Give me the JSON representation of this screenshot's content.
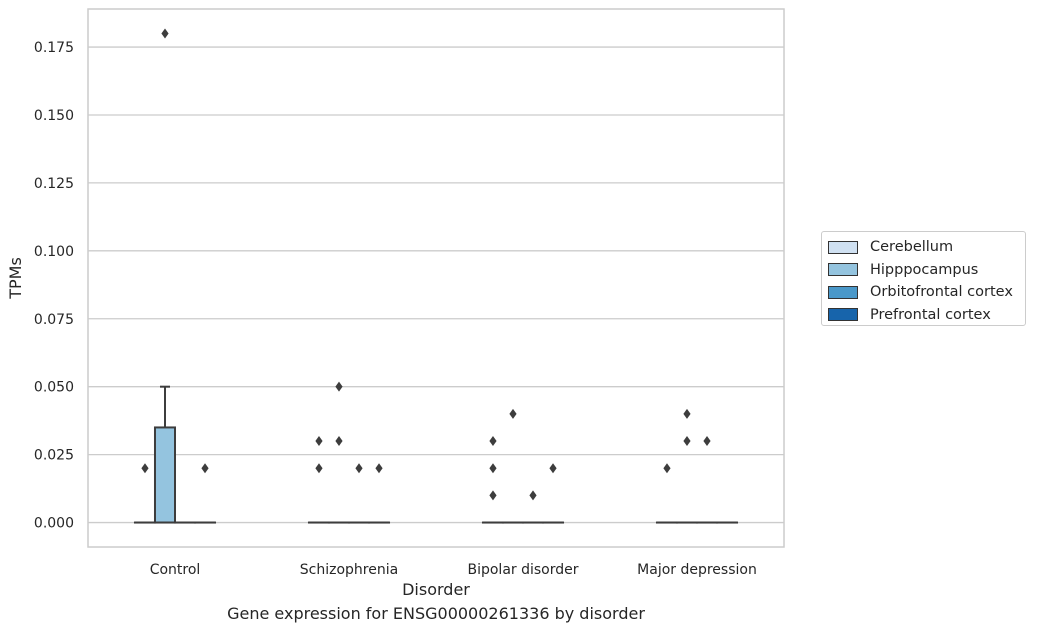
{
  "chart_data": {
    "type": "box",
    "title": "Gene expression for ENSG00000261336 by disorder",
    "xlabel": "Disorder",
    "ylabel": "TPMs",
    "categories": [
      "Control",
      "Schizophrenia",
      "Bipolar disorder",
      "Major depression"
    ],
    "y_ticks": [
      "0.000",
      "0.025",
      "0.050",
      "0.075",
      "0.100",
      "0.125",
      "0.150",
      "0.175"
    ],
    "ylim": [
      -0.009,
      0.189
    ],
    "grid": "horizontal",
    "legend_position": "right",
    "series": [
      {
        "name": "Cerebellum",
        "color": "#d0e1f2",
        "boxes": [
          {
            "q1": 0,
            "median": 0,
            "q3": 0,
            "whisker_low": 0,
            "whisker_high": 0,
            "outliers": [
              0.02
            ]
          },
          {
            "q1": 0,
            "median": 0,
            "q3": 0,
            "whisker_low": 0,
            "whisker_high": 0,
            "outliers": [
              0.02,
              0.03
            ]
          },
          {
            "q1": 0,
            "median": 0,
            "q3": 0,
            "whisker_low": 0,
            "whisker_high": 0,
            "outliers": [
              0.01,
              0.02,
              0.03
            ]
          },
          {
            "q1": 0,
            "median": 0,
            "q3": 0,
            "whisker_low": 0,
            "whisker_high": 0,
            "outliers": [
              0.02
            ]
          }
        ]
      },
      {
        "name": "Hipppocampus",
        "color": "#94c4df",
        "boxes": [
          {
            "q1": 0,
            "median": 0,
            "q3": 0.035,
            "whisker_low": 0,
            "whisker_high": 0.05,
            "outliers": [
              0.18
            ]
          },
          {
            "q1": 0,
            "median": 0,
            "q3": 0,
            "whisker_low": 0,
            "whisker_high": 0,
            "outliers": [
              0.03,
              0.05
            ]
          },
          {
            "q1": 0,
            "median": 0,
            "q3": 0,
            "whisker_low": 0,
            "whisker_high": 0,
            "outliers": [
              0.04
            ]
          },
          {
            "q1": 0,
            "median": 0,
            "q3": 0,
            "whisker_low": 0,
            "whisker_high": 0,
            "outliers": [
              0.03,
              0.04
            ]
          }
        ]
      },
      {
        "name": "Orbitofrontal cortex",
        "color": "#4a98c9",
        "boxes": [
          {
            "q1": 0,
            "median": 0,
            "q3": 0,
            "whisker_low": 0,
            "whisker_high": 0,
            "outliers": []
          },
          {
            "q1": 0,
            "median": 0,
            "q3": 0,
            "whisker_low": 0,
            "whisker_high": 0,
            "outliers": [
              0.02
            ]
          },
          {
            "q1": 0,
            "median": 0,
            "q3": 0,
            "whisker_low": 0,
            "whisker_high": 0,
            "outliers": [
              0.01
            ]
          },
          {
            "q1": 0,
            "median": 0,
            "q3": 0,
            "whisker_low": 0,
            "whisker_high": 0,
            "outliers": [
              0.03
            ]
          }
        ]
      },
      {
        "name": "Prefrontal cortex",
        "color": "#1764ab",
        "boxes": [
          {
            "q1": 0,
            "median": 0,
            "q3": 0,
            "whisker_low": 0,
            "whisker_high": 0,
            "outliers": [
              0.02
            ]
          },
          {
            "q1": 0,
            "median": 0,
            "q3": 0,
            "whisker_low": 0,
            "whisker_high": 0,
            "outliers": [
              0.02
            ]
          },
          {
            "q1": 0,
            "median": 0,
            "q3": 0,
            "whisker_low": 0,
            "whisker_high": 0,
            "outliers": [
              0.02
            ]
          },
          {
            "q1": 0,
            "median": 0,
            "q3": 0,
            "whisker_low": 0,
            "whisker_high": 0,
            "outliers": []
          }
        ]
      }
    ]
  }
}
